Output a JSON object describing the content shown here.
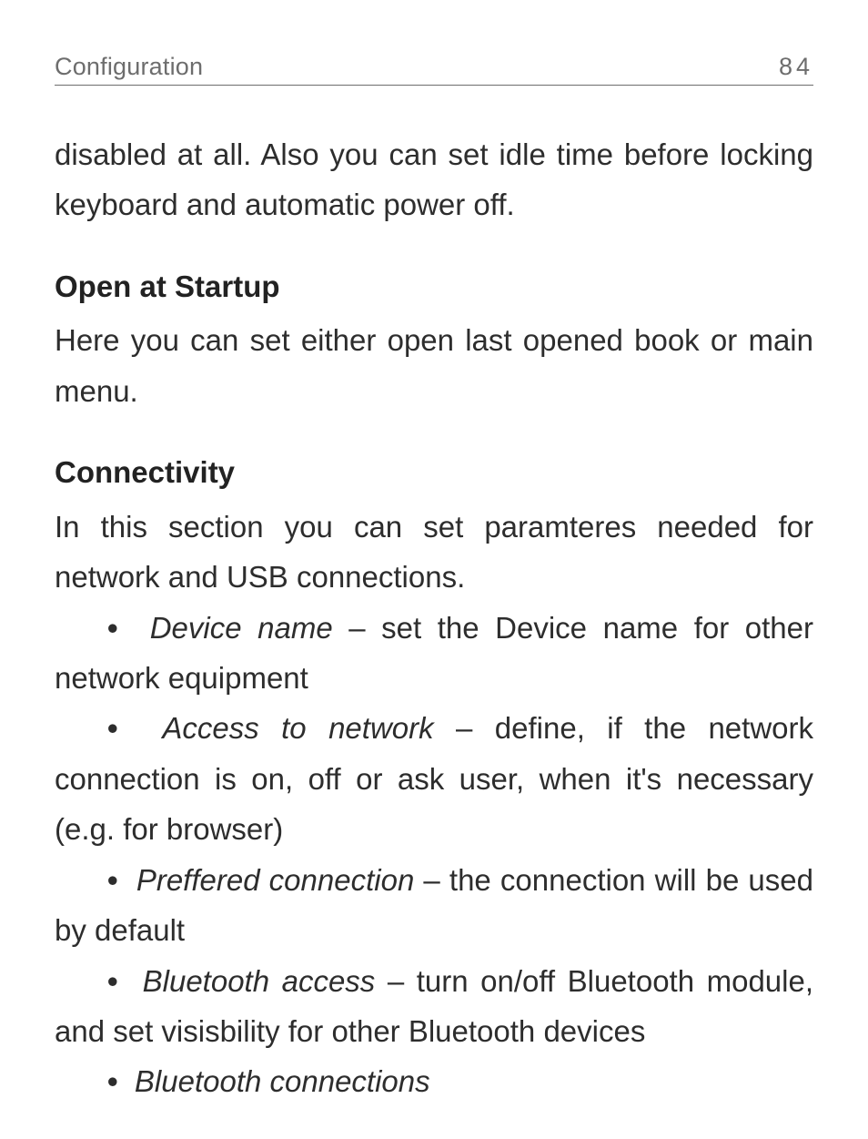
{
  "page": {
    "header_title": "Configuration",
    "page_number": "84",
    "colors": {
      "background": "#ffffff",
      "body_text": "#2d2d2d",
      "header_text": "#6d6d6d",
      "header_rule": "#6d6d6d",
      "heading_text": "#222222"
    },
    "typography": {
      "body_fontsize_pt": 25,
      "header_fontsize_pt": 20,
      "line_height": 1.68,
      "heading_weight": 700,
      "italic_terms": true,
      "justify": true
    }
  },
  "intro_continuation": "disabled at all. Also you can set idle time before locking keyboard and automatic power off.",
  "sections": [
    {
      "heading": "Open at Startup",
      "body": "Here you can set either open last opened book or main menu."
    },
    {
      "heading": "Connectivity",
      "body": "In this section you can set paramteres needed for network and USB connections.",
      "bullets": [
        {
          "term": "Device name",
          "desc": " – set the Device name for other network equipment"
        },
        {
          "term": "Access to network",
          "desc": " – define, if the network connection is on, off or ask user, when it's necessary (e.g. for browser)"
        },
        {
          "term": "Preffered connection",
          "desc": " – the connection will be used by default"
        },
        {
          "term": "Bluetooth access",
          "desc": " – turn on/off Bluetooth module, and set visisbility for other Bluetooth devices"
        },
        {
          "term": "Bluetooth connections",
          "desc": ""
        }
      ]
    }
  ]
}
